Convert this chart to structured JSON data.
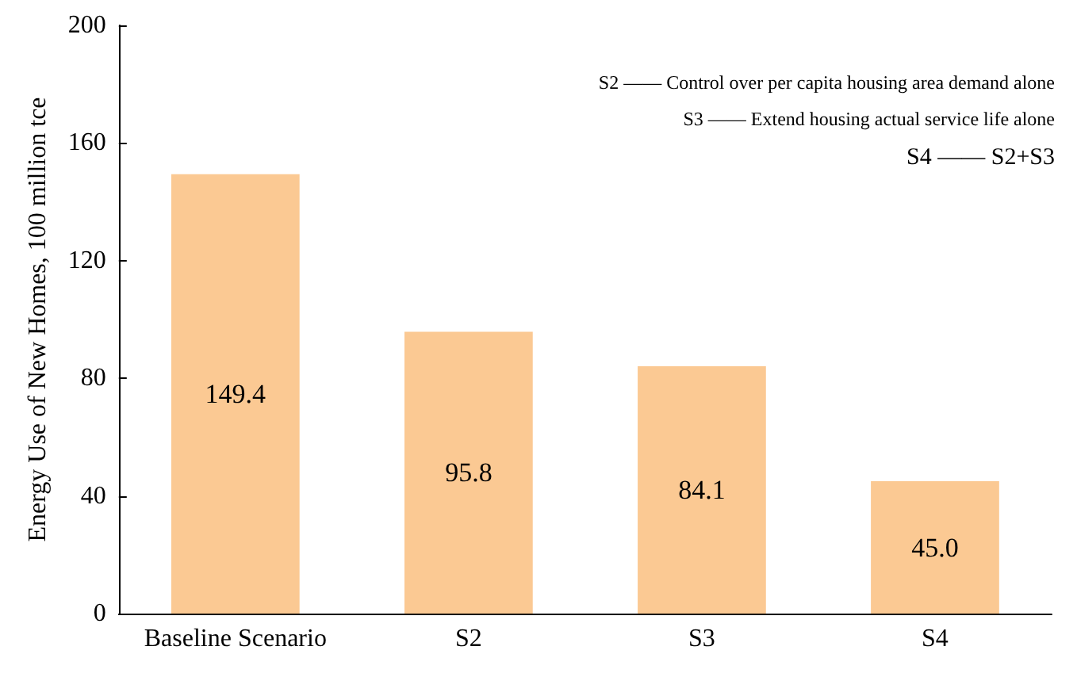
{
  "chart_data": {
    "type": "bar",
    "ylabel": "Energy Use of New Homes, 100 million tce",
    "categories": [
      "Baseline Scenario",
      "S2",
      "S3",
      "S4"
    ],
    "values": [
      149.4,
      95.8,
      84.1,
      45.0
    ],
    "value_labels": [
      "149.4",
      "95.8",
      "84.1",
      "45.0"
    ],
    "color": "#fbc993",
    "ylim": [
      0,
      200
    ],
    "yticks": [
      0,
      40,
      80,
      120,
      160,
      200
    ],
    "grid": false,
    "annotations": [
      "S2 —— Control over per capita housing area demand alone",
      "S3 —— Extend housing actual service life alone",
      "S4 —— S2+S3"
    ]
  }
}
